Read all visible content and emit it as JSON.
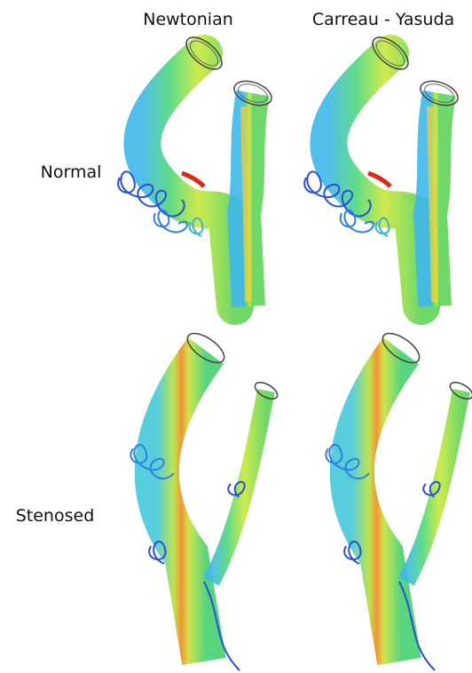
{
  "columns": [
    "Newtonian",
    "Carreau - Yasuda"
  ],
  "rows": [
    "Normal",
    "Stenosed"
  ]
}
